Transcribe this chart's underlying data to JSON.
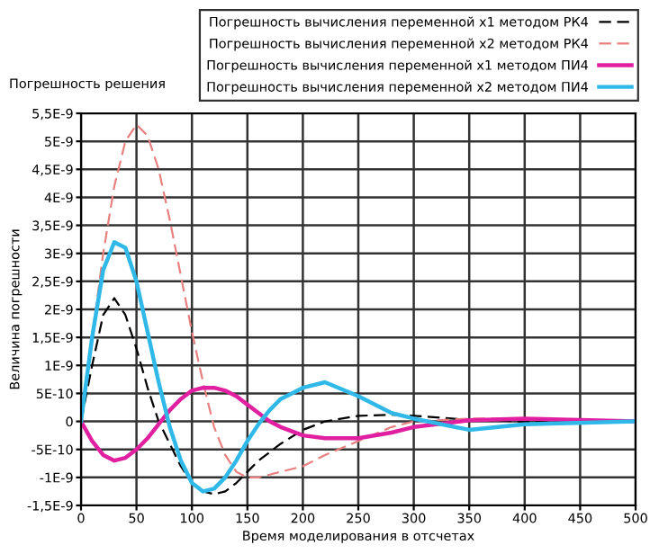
{
  "chart_data": {
    "type": "line",
    "title": "Погрешность решения",
    "xlabel": "Время моделирования в отсчетах",
    "ylabel": "Величина погрешности",
    "x": [
      0,
      10,
      20,
      30,
      40,
      50,
      60,
      70,
      80,
      90,
      100,
      110,
      120,
      130,
      140,
      150,
      160,
      170,
      180,
      200,
      220,
      250,
      280,
      300,
      350,
      400,
      500
    ],
    "series": [
      {
        "name": "Погрешность вычисления переменной x1 методом РК4",
        "color": "#000000",
        "line_style": "dashed",
        "values": [
          0,
          1e-09,
          1.9e-09,
          2.2e-09,
          1.9e-09,
          1.3e-09,
          6e-10,
          0.0,
          -4e-10,
          -8e-10,
          -1.1e-09,
          -1.25e-09,
          -1.3e-09,
          -1.25e-09,
          -1.1e-09,
          -9e-10,
          -7e-10,
          -5.5e-10,
          -4e-10,
          -1.5e-10,
          0.0,
          1e-10,
          1.2e-10,
          1e-10,
          3e-11,
          0,
          0
        ]
      },
      {
        "name": "Погрешность вычисления переменной x2 методом РК4",
        "color": "#e88080",
        "line_style": "dashed",
        "values": [
          0,
          1.5e-09,
          3e-09,
          4.2e-09,
          5e-09,
          5.3e-09,
          5.1e-09,
          4.5e-09,
          3.6e-09,
          2.6e-09,
          1.6e-09,
          7e-10,
          -1e-10,
          -6e-10,
          -9e-10,
          -1e-09,
          -1e-09,
          -9.5e-10,
          -9e-10,
          -8e-10,
          -6e-10,
          -3.5e-10,
          -1e-10,
          0.0,
          5e-11,
          5e-11,
          0
        ]
      },
      {
        "name": "Погрешность вычисления переменной x1 методом ПИ4",
        "color": "#e020a0",
        "line_style": "solid",
        "values": [
          0,
          -3.5e-10,
          -6e-10,
          -7e-10,
          -6.5e-10,
          -5e-10,
          -3e-10,
          -5e-11,
          2e-10,
          4e-10,
          5.5e-10,
          6e-10,
          6e-10,
          5.5e-10,
          4.5e-10,
          3e-10,
          1.5e-10,
          0.0,
          -1e-10,
          -2.5e-10,
          -3e-10,
          -3e-10,
          -2e-10,
          -1e-10,
          2e-11,
          5e-11,
          0
        ]
      },
      {
        "name": "Погрешность вычисления переменной x2 методом ПИ4",
        "color": "#30b8e8",
        "line_style": "solid",
        "values": [
          0,
          1.5e-09,
          2.7e-09,
          3.2e-09,
          3.1e-09,
          2.5e-09,
          1.6e-09,
          7e-10,
          -1e-10,
          -7e-10,
          -1.1e-09,
          -1.25e-09,
          -1.2e-09,
          -1e-09,
          -7e-10,
          -3.5e-10,
          -5e-11,
          2e-10,
          4e-10,
          6e-10,
          7e-10,
          4.5e-10,
          1.5e-10,
          5e-11,
          -1.5e-10,
          -5e-11,
          0
        ]
      }
    ],
    "xlim": [
      0,
      500
    ],
    "xticks": [
      0,
      50,
      100,
      150,
      200,
      250,
      300,
      350,
      400,
      450,
      500
    ],
    "ylim": [
      -1.5e-09,
      5.5e-09
    ],
    "yticks": [
      {
        "value": -1.5e-09,
        "label": "-1,5E-9"
      },
      {
        "value": -1e-09,
        "label": "-1E-9"
      },
      {
        "value": -5e-10,
        "label": "-5E-10"
      },
      {
        "value": 0,
        "label": "0"
      },
      {
        "value": 5e-10,
        "label": "5E-10"
      },
      {
        "value": 1e-09,
        "label": "1E-9"
      },
      {
        "value": 1.5e-09,
        "label": "1,5E-9"
      },
      {
        "value": 2e-09,
        "label": "2E-9"
      },
      {
        "value": 2.5e-09,
        "label": "2,5E-9"
      },
      {
        "value": 3e-09,
        "label": "3E-9"
      },
      {
        "value": 3.5e-09,
        "label": "3,5E-9"
      },
      {
        "value": 4e-09,
        "label": "4E-9"
      },
      {
        "value": 4.5e-09,
        "label": "4,5E-9"
      },
      {
        "value": 5e-09,
        "label": "5E-9"
      },
      {
        "value": 5.5e-09,
        "label": "5,5E-9"
      }
    ],
    "grid": true,
    "legend": "top right"
  }
}
